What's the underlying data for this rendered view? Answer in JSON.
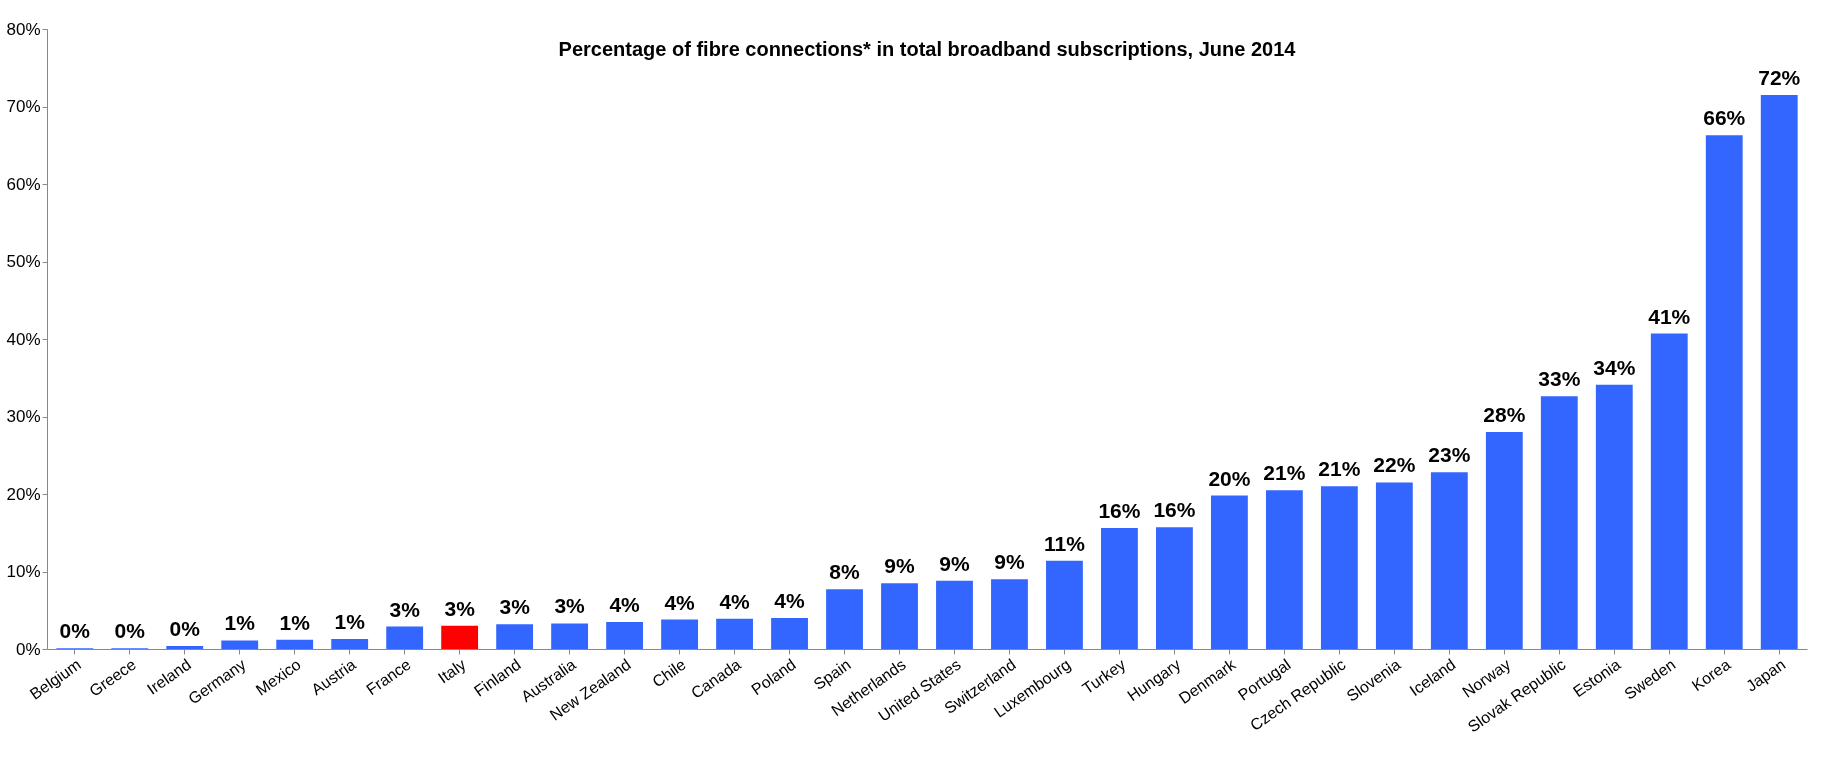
{
  "chart_data": {
    "type": "bar",
    "title": "Percentage of fibre connections* in total broadband subscriptions, June 2014",
    "categories": [
      "Belgium",
      "Greece",
      "Ireland",
      "Germany",
      "Mexico",
      "Austria",
      "France",
      "Italy",
      "Finland",
      "Australia",
      "New Zealand",
      "Chile",
      "Canada",
      "Poland",
      "Spain",
      "Netherlands",
      "United States",
      "Switzerland",
      "Luxembourg",
      "Turkey",
      "Hungary",
      "Denmark",
      "Portugal",
      "Czech Republic",
      "Slovenia",
      "Iceland",
      "Norway",
      "Slovak Republic",
      "Estonia",
      "Sweden",
      "Korea",
      "Japan"
    ],
    "values": [
      0.1,
      0.1,
      0.4,
      1.1,
      1.2,
      1.3,
      2.9,
      3.0,
      3.2,
      3.3,
      3.5,
      3.8,
      3.9,
      4.0,
      7.7,
      8.5,
      8.8,
      9.0,
      11.4,
      15.6,
      15.7,
      19.8,
      20.5,
      21.0,
      21.5,
      22.8,
      28.0,
      32.6,
      34.1,
      40.7,
      66.3,
      71.5
    ],
    "colors": [
      "#3366ff",
      "#3366ff",
      "#3366ff",
      "#3366ff",
      "#3366ff",
      "#3366ff",
      "#3366ff",
      "#ff0000",
      "#3366ff",
      "#3366ff",
      "#3366ff",
      "#3366ff",
      "#3366ff",
      "#3366ff",
      "#3366ff",
      "#3366ff",
      "#3366ff",
      "#3366ff",
      "#3366ff",
      "#3366ff",
      "#3366ff",
      "#3366ff",
      "#3366ff",
      "#3366ff",
      "#3366ff",
      "#3366ff",
      "#3366ff",
      "#3366ff",
      "#3366ff",
      "#3366ff",
      "#3366ff",
      "#3366ff"
    ],
    "value_labels": [
      "0%",
      "0%",
      "0%",
      "1%",
      "1%",
      "1%",
      "3%",
      "3%",
      "3%",
      "3%",
      "4%",
      "4%",
      "4%",
      "4%",
      "8%",
      "9%",
      "9%",
      "9%",
      "11%",
      "16%",
      "16%",
      "20%",
      "21%",
      "21%",
      "22%",
      "23%",
      "28%",
      "33%",
      "34%",
      "41%",
      "66%",
      "72%"
    ],
    "ylim": [
      0,
      80
    ],
    "yticks": [
      {
        "value": 0,
        "label": "0%"
      },
      {
        "value": 10,
        "label": "10%"
      },
      {
        "value": 20,
        "label": "20%"
      },
      {
        "value": 30,
        "label": "30%"
      },
      {
        "value": 40,
        "label": "40%"
      },
      {
        "value": 50,
        "label": "50%"
      },
      {
        "value": 60,
        "label": "60%"
      },
      {
        "value": 70,
        "label": "70%"
      },
      {
        "value": 80,
        "label": "80%"
      }
    ],
    "grid": false
  }
}
